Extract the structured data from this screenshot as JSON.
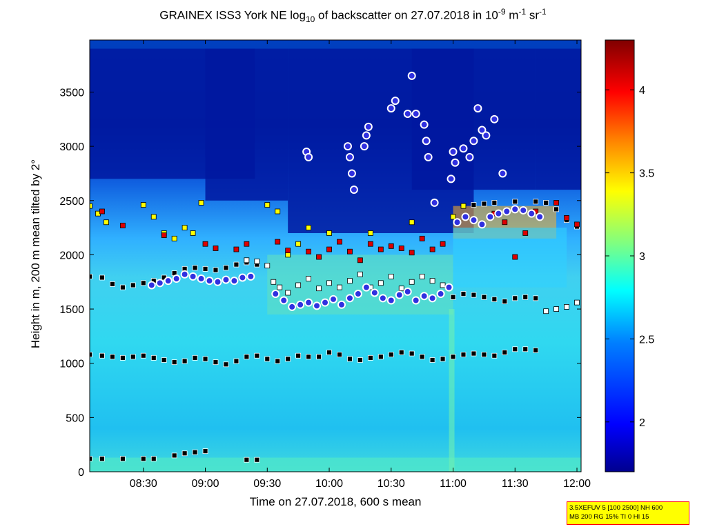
{
  "title": {
    "prefix": "GRAINEX ISS3 York NE log",
    "sub": "10",
    "middle": " of backscatter on 27.07.2018 in 10",
    "sup1": "-9",
    "unit1": " m",
    "sup2": "-1",
    "unit2": " sr",
    "sup3": "-1"
  },
  "info_box": {
    "line1": "3.5XEFUV 5 [100 2500] NH 600",
    "line2": "MB 200 RG 15% TI 0 HI 15"
  },
  "chart_data": {
    "type": "heatmap",
    "xlabel": "Time on 27.07.2018, 600 s mean",
    "ylabel": "Height in m, 200 m mean tilted by 2°",
    "x_ticks": [
      "08:30",
      "09:00",
      "09:30",
      "10:00",
      "10:30",
      "11:00",
      "11:30",
      "12:00"
    ],
    "x_tick_minutes": [
      510,
      540,
      570,
      600,
      630,
      660,
      690,
      720
    ],
    "xlim_minutes": [
      484,
      722
    ],
    "y_ticks": [
      0,
      500,
      1000,
      1500,
      2000,
      2500,
      3000,
      3500
    ],
    "ylim": [
      0,
      3980
    ],
    "colorbar": {
      "ticks": [
        2,
        2.5,
        3,
        3.5,
        4
      ],
      "range": [
        1.7,
        4.3
      ],
      "colors": [
        "#00008f",
        "#0000ff",
        "#0080ff",
        "#00ffff",
        "#80ff80",
        "#ffff00",
        "#ff8000",
        "#ff0000",
        "#800000"
      ]
    },
    "series": [
      {
        "marker": "black-square",
        "points": [
          [
            484,
            1800
          ],
          [
            490,
            1790
          ],
          [
            495,
            1730
          ],
          [
            500,
            1700
          ],
          [
            505,
            1720
          ],
          [
            510,
            1740
          ],
          [
            515,
            1760
          ],
          [
            520,
            1790
          ],
          [
            525,
            1830
          ],
          [
            530,
            1870
          ],
          [
            535,
            1880
          ],
          [
            540,
            1870
          ],
          [
            545,
            1860
          ],
          [
            550,
            1880
          ],
          [
            555,
            1910
          ],
          [
            560,
            1930
          ],
          [
            565,
            1910
          ],
          [
            484,
            1080
          ],
          [
            490,
            1070
          ],
          [
            495,
            1060
          ],
          [
            500,
            1050
          ],
          [
            505,
            1060
          ],
          [
            510,
            1070
          ],
          [
            515,
            1050
          ],
          [
            520,
            1030
          ],
          [
            525,
            1010
          ],
          [
            530,
            1020
          ],
          [
            535,
            1050
          ],
          [
            540,
            1040
          ],
          [
            545,
            1010
          ],
          [
            550,
            990
          ],
          [
            555,
            1020
          ],
          [
            560,
            1060
          ],
          [
            565,
            1070
          ],
          [
            570,
            1040
          ],
          [
            575,
            1020
          ],
          [
            580,
            1040
          ],
          [
            585,
            1070
          ],
          [
            590,
            1060
          ],
          [
            595,
            1060
          ],
          [
            600,
            1100
          ],
          [
            605,
            1080
          ],
          [
            610,
            1040
          ],
          [
            615,
            1030
          ],
          [
            620,
            1050
          ],
          [
            625,
            1060
          ],
          [
            630,
            1080
          ],
          [
            635,
            1100
          ],
          [
            640,
            1090
          ],
          [
            645,
            1060
          ],
          [
            650,
            1030
          ],
          [
            655,
            1040
          ],
          [
            660,
            1060
          ],
          [
            665,
            1080
          ],
          [
            670,
            1090
          ],
          [
            675,
            1080
          ],
          [
            680,
            1070
          ],
          [
            685,
            1100
          ],
          [
            690,
            1130
          ],
          [
            695,
            1130
          ],
          [
            700,
            1120
          ],
          [
            660,
            1610
          ],
          [
            665,
            1640
          ],
          [
            670,
            1630
          ],
          [
            675,
            1610
          ],
          [
            680,
            1590
          ],
          [
            685,
            1570
          ],
          [
            690,
            1600
          ],
          [
            695,
            1610
          ],
          [
            700,
            1600
          ],
          [
            670,
            2460
          ],
          [
            675,
            2470
          ],
          [
            680,
            2480
          ],
          [
            690,
            2490
          ],
          [
            700,
            2490
          ],
          [
            705,
            2480
          ],
          [
            710,
            2420
          ],
          [
            715,
            2320
          ],
          [
            720,
            2260
          ],
          [
            484,
            120
          ],
          [
            490,
            120
          ],
          [
            500,
            120
          ],
          [
            510,
            120
          ],
          [
            515,
            120
          ],
          [
            525,
            150
          ],
          [
            530,
            170
          ],
          [
            535,
            180
          ],
          [
            540,
            190
          ],
          [
            560,
            110
          ],
          [
            565,
            110
          ]
        ]
      },
      {
        "marker": "white-square",
        "points": [
          [
            560,
            1950
          ],
          [
            565,
            1940
          ],
          [
            570,
            1900
          ],
          [
            573,
            1750
          ],
          [
            576,
            1700
          ],
          [
            580,
            1650
          ],
          [
            585,
            1720
          ],
          [
            590,
            1780
          ],
          [
            595,
            1690
          ],
          [
            600,
            1740
          ],
          [
            605,
            1700
          ],
          [
            610,
            1760
          ],
          [
            615,
            1820
          ],
          [
            620,
            1700
          ],
          [
            625,
            1740
          ],
          [
            630,
            1800
          ],
          [
            635,
            1690
          ],
          [
            640,
            1750
          ],
          [
            645,
            1800
          ],
          [
            650,
            1760
          ],
          [
            655,
            1720
          ],
          [
            705,
            1480
          ],
          [
            710,
            1500
          ],
          [
            715,
            1520
          ],
          [
            720,
            1560
          ]
        ]
      },
      {
        "marker": "yellow-square",
        "points": [
          [
            484,
            2450
          ],
          [
            488,
            2380
          ],
          [
            492,
            2300
          ],
          [
            510,
            2460
          ],
          [
            515,
            2350
          ],
          [
            520,
            2200
          ],
          [
            525,
            2150
          ],
          [
            530,
            2250
          ],
          [
            534,
            2200
          ],
          [
            538,
            2480
          ],
          [
            570,
            2460
          ],
          [
            575,
            2400
          ],
          [
            580,
            2000
          ],
          [
            585,
            2100
          ],
          [
            590,
            2250
          ],
          [
            600,
            2200
          ],
          [
            620,
            2200
          ],
          [
            640,
            2300
          ],
          [
            660,
            2350
          ],
          [
            665,
            2450
          ]
        ]
      },
      {
        "marker": "red-square",
        "points": [
          [
            490,
            2400
          ],
          [
            500,
            2270
          ],
          [
            520,
            2180
          ],
          [
            540,
            2100
          ],
          [
            545,
            2060
          ],
          [
            555,
            2050
          ],
          [
            560,
            2100
          ],
          [
            575,
            2120
          ],
          [
            580,
            2040
          ],
          [
            590,
            2030
          ],
          [
            595,
            1980
          ],
          [
            600,
            2050
          ],
          [
            605,
            2120
          ],
          [
            610,
            2030
          ],
          [
            615,
            1950
          ],
          [
            620,
            2100
          ],
          [
            625,
            2050
          ],
          [
            630,
            2080
          ],
          [
            635,
            2060
          ],
          [
            640,
            2020
          ],
          [
            645,
            2150
          ],
          [
            650,
            2050
          ],
          [
            655,
            2100
          ],
          [
            680,
            2380
          ],
          [
            685,
            2300
          ],
          [
            690,
            1980
          ],
          [
            695,
            2200
          ],
          [
            700,
            2400
          ],
          [
            710,
            2480
          ],
          [
            715,
            2340
          ],
          [
            720,
            2280
          ]
        ]
      },
      {
        "marker": "circle",
        "points": [
          [
            514,
            1720
          ],
          [
            518,
            1740
          ],
          [
            522,
            1760
          ],
          [
            526,
            1780
          ],
          [
            530,
            1820
          ],
          [
            534,
            1800
          ],
          [
            538,
            1780
          ],
          [
            542,
            1760
          ],
          [
            546,
            1750
          ],
          [
            550,
            1770
          ],
          [
            554,
            1760
          ],
          [
            558,
            1790
          ],
          [
            562,
            1800
          ],
          [
            574,
            1640
          ],
          [
            578,
            1580
          ],
          [
            582,
            1520
          ],
          [
            586,
            1540
          ],
          [
            590,
            1560
          ],
          [
            594,
            1530
          ],
          [
            598,
            1560
          ],
          [
            602,
            1590
          ],
          [
            606,
            1540
          ],
          [
            610,
            1600
          ],
          [
            614,
            1640
          ],
          [
            618,
            1700
          ],
          [
            622,
            1650
          ],
          [
            626,
            1600
          ],
          [
            630,
            1580
          ],
          [
            634,
            1630
          ],
          [
            638,
            1660
          ],
          [
            642,
            1580
          ],
          [
            646,
            1620
          ],
          [
            650,
            1600
          ],
          [
            654,
            1640
          ],
          [
            658,
            1700
          ],
          [
            662,
            2300
          ],
          [
            666,
            2350
          ],
          [
            670,
            2320
          ],
          [
            674,
            2280
          ],
          [
            678,
            2350
          ],
          [
            682,
            2380
          ],
          [
            686,
            2400
          ],
          [
            690,
            2420
          ],
          [
            694,
            2410
          ],
          [
            698,
            2380
          ],
          [
            702,
            2350
          ],
          [
            589,
            2950
          ],
          [
            590,
            2900
          ],
          [
            609,
            3000
          ],
          [
            610,
            2900
          ],
          [
            611,
            2750
          ],
          [
            612,
            2600
          ],
          [
            617,
            3000
          ],
          [
            618,
            3100
          ],
          [
            619,
            3180
          ],
          [
            630,
            3350
          ],
          [
            632,
            3420
          ],
          [
            638,
            3300
          ],
          [
            640,
            3650
          ],
          [
            642,
            3300
          ],
          [
            646,
            3200
          ],
          [
            647,
            3050
          ],
          [
            648,
            2900
          ],
          [
            651,
            2480
          ],
          [
            659,
            2700
          ],
          [
            660,
            2950
          ],
          [
            661,
            2850
          ],
          [
            665,
            2980
          ],
          [
            668,
            2900
          ],
          [
            670,
            3050
          ],
          [
            672,
            3350
          ],
          [
            674,
            3150
          ],
          [
            676,
            3100
          ],
          [
            680,
            3250
          ],
          [
            684,
            2750
          ]
        ]
      }
    ]
  }
}
